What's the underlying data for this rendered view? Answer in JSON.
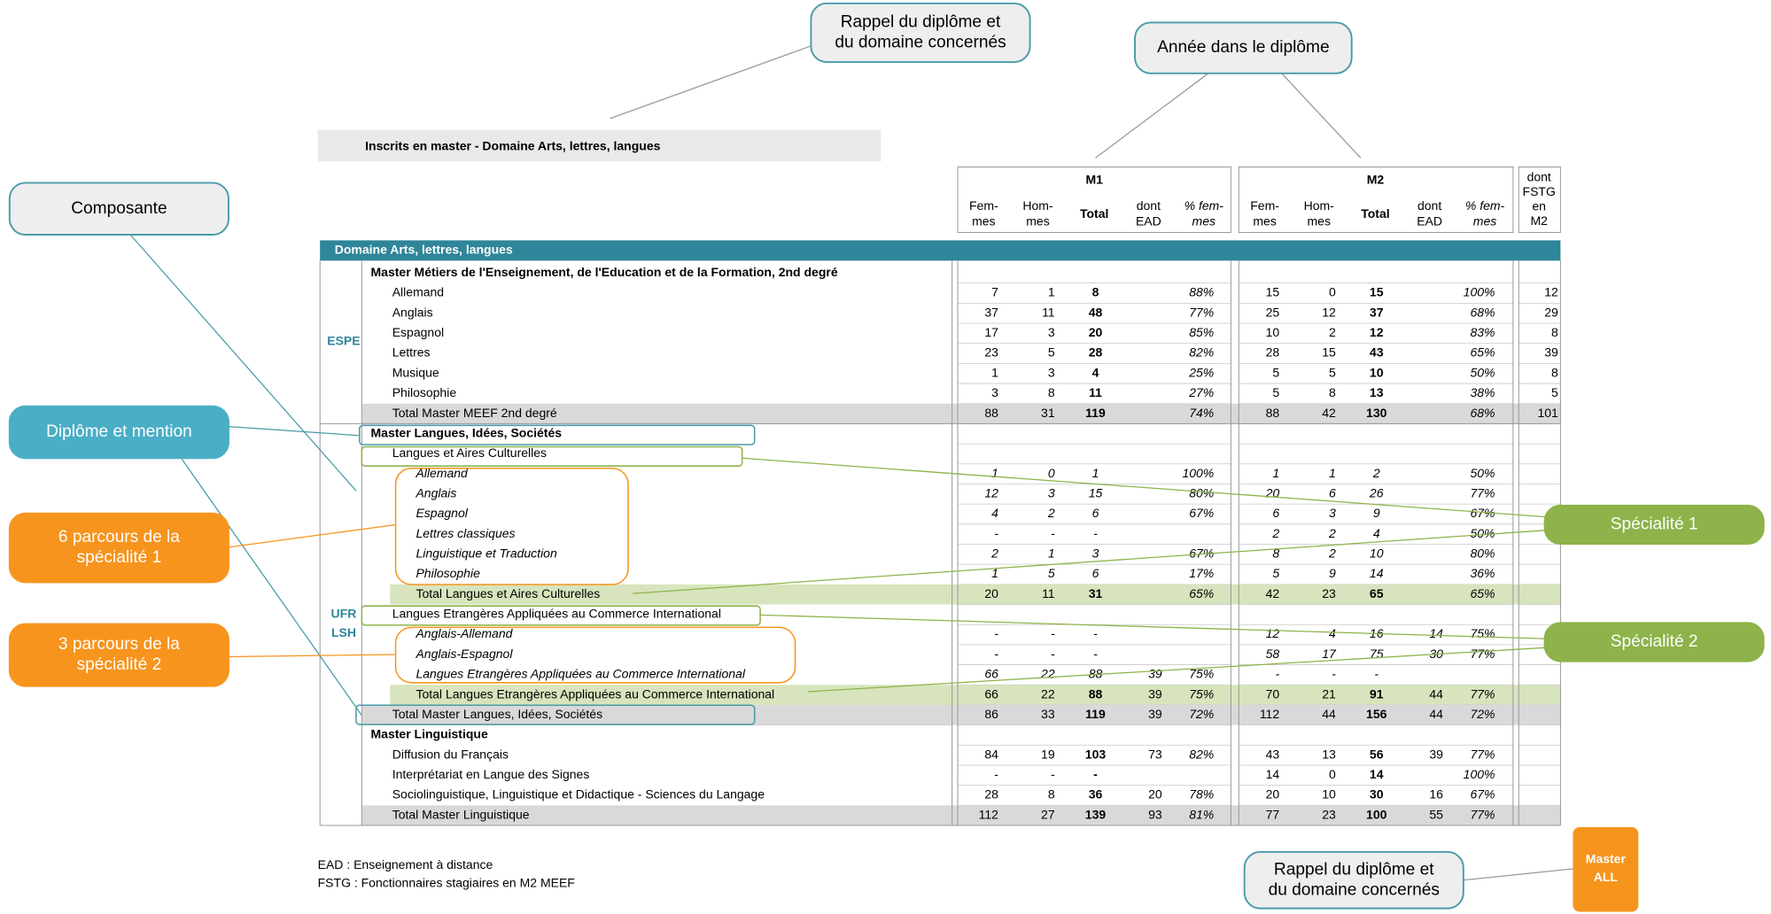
{
  "title": "Inscrits en master - Domaine Arts, lettres, langues",
  "groups": [
    "M1",
    "M2"
  ],
  "subcolumns": [
    [
      "Fem-",
      "mes"
    ],
    [
      "Hom-",
      "mes"
    ],
    [
      "Total"
    ],
    [
      "dont",
      "EAD"
    ],
    [
      "% fem-",
      "mes"
    ]
  ],
  "fstg": [
    "dont",
    "FSTG",
    "en",
    "M2"
  ],
  "domain": "Domaine Arts, lettres, langues",
  "composantes": [
    [
      "ESPE"
    ],
    [
      "UFR",
      "LSH"
    ]
  ],
  "rows": [
    {
      "kind": "head",
      "label": "Master Métiers de l'Enseignement, de l'Education et de la Formation, 2nd degré"
    },
    {
      "kind": "item",
      "label": "Allemand",
      "cells": [
        "7",
        "1",
        "8",
        null,
        "88%",
        "15",
        "0",
        "15",
        null,
        "100%",
        "12"
      ]
    },
    {
      "kind": "item",
      "label": "Anglais",
      "cells": [
        "37",
        "11",
        "48",
        null,
        "77%",
        "25",
        "12",
        "37",
        null,
        "68%",
        "29"
      ]
    },
    {
      "kind": "item",
      "label": "Espagnol",
      "cells": [
        "17",
        "3",
        "20",
        null,
        "85%",
        "10",
        "2",
        "12",
        null,
        "83%",
        "8"
      ]
    },
    {
      "kind": "item",
      "label": "Lettres",
      "cells": [
        "23",
        "5",
        "28",
        null,
        "82%",
        "28",
        "15",
        "43",
        null,
        "65%",
        "39"
      ]
    },
    {
      "kind": "item",
      "label": "Musique",
      "cells": [
        "1",
        "3",
        "4",
        null,
        "25%",
        "5",
        "5",
        "10",
        null,
        "50%",
        "8"
      ]
    },
    {
      "kind": "item",
      "label": "Philosophie",
      "cells": [
        "3",
        "8",
        "11",
        null,
        "27%",
        "5",
        "8",
        "13",
        null,
        "38%",
        "5"
      ]
    },
    {
      "kind": "total",
      "label": "Total Master MEEF 2nd degré",
      "cells": [
        "88",
        "31",
        "119",
        null,
        "74%",
        "88",
        "42",
        "130",
        null,
        "68%",
        "101"
      ]
    },
    {
      "kind": "head",
      "label": "Master Langues, Idées, Sociétés"
    },
    {
      "kind": "item",
      "label": "Langues et Aires Culturelles"
    },
    {
      "kind": "sub",
      "label": "Allemand",
      "cells": [
        "1",
        "0",
        "1",
        null,
        "100%",
        "1",
        "1",
        "2",
        null,
        "50%",
        null
      ]
    },
    {
      "kind": "sub",
      "label": "Anglais",
      "cells": [
        "12",
        "3",
        "15",
        null,
        "80%",
        "20",
        "6",
        "26",
        null,
        "77%",
        null
      ]
    },
    {
      "kind": "sub",
      "label": "Espagnol",
      "cells": [
        "4",
        "2",
        "6",
        null,
        "67%",
        "6",
        "3",
        "9",
        null,
        "67%",
        null
      ]
    },
    {
      "kind": "sub",
      "label": "Lettres classiques",
      "cells": [
        "-",
        "-",
        "-",
        null,
        null,
        "2",
        "2",
        "4",
        null,
        "50%",
        null
      ]
    },
    {
      "kind": "sub",
      "label": "Linguistique et Traduction",
      "cells": [
        "2",
        "1",
        "3",
        null,
        "67%",
        "8",
        "2",
        "10",
        null,
        "80%",
        null
      ]
    },
    {
      "kind": "sub",
      "label": "Philosophie",
      "cells": [
        "1",
        "5",
        "6",
        null,
        "17%",
        "5",
        "9",
        "14",
        null,
        "36%",
        null
      ]
    },
    {
      "kind": "subtotal",
      "label": "Total Langues et Aires Culturelles",
      "cells": [
        "20",
        "11",
        "31",
        null,
        "65%",
        "42",
        "23",
        "65",
        null,
        "65%",
        null
      ]
    },
    {
      "kind": "item",
      "label": "Langues Etrangères Appliquées au Commerce International"
    },
    {
      "kind": "sub",
      "label": "Anglais-Allemand",
      "cells": [
        "-",
        "-",
        "-",
        null,
        null,
        "12",
        "4",
        "16",
        "14",
        "75%",
        null
      ]
    },
    {
      "kind": "sub",
      "label": "Anglais-Espagnol",
      "cells": [
        "-",
        "-",
        "-",
        null,
        null,
        "58",
        "17",
        "75",
        "30",
        "77%",
        null
      ]
    },
    {
      "kind": "sub",
      "label": "Langues Etrangères Appliquées au Commerce International",
      "cells": [
        "66",
        "22",
        "88",
        "39",
        "75%",
        "-",
        "-",
        "-",
        null,
        null,
        null
      ]
    },
    {
      "kind": "subtotal",
      "label": "Total Langues Etrangères Appliquées au Commerce International",
      "cells": [
        "66",
        "22",
        "88",
        "39",
        "75%",
        "70",
        "21",
        "91",
        "44",
        "77%",
        null
      ]
    },
    {
      "kind": "total",
      "label": "Total Master Langues, Idées, Sociétés",
      "cells": [
        "86",
        "33",
        "119",
        "39",
        "72%",
        "112",
        "44",
        "156",
        "44",
        "72%",
        null
      ]
    },
    {
      "kind": "head",
      "label": "Master Linguistique"
    },
    {
      "kind": "item",
      "label": "Diffusion du Français",
      "cells": [
        "84",
        "19",
        "103",
        "73",
        "82%",
        "43",
        "13",
        "56",
        "39",
        "77%",
        null
      ]
    },
    {
      "kind": "item",
      "label": "Interprétariat en Langue des Signes",
      "cells": [
        "-",
        "-",
        "-",
        null,
        null,
        "14",
        "0",
        "14",
        null,
        "100%",
        null
      ]
    },
    {
      "kind": "item",
      "label": "Sociolinguistique, Linguistique et Didactique - Sciences du Langage",
      "cells": [
        "28",
        "8",
        "36",
        "20",
        "78%",
        "20",
        "10",
        "30",
        "16",
        "67%",
        null
      ]
    },
    {
      "kind": "total",
      "label": "Total Master Linguistique",
      "cells": [
        "112",
        "27",
        "139",
        "93",
        "81%",
        "77",
        "23",
        "100",
        "55",
        "77%",
        null
      ]
    }
  ],
  "footnotes": [
    "EAD : Enseignement à distance",
    "FSTG : Fonctionnaires stagiaires en M2 MEEF"
  ],
  "callouts": {
    "diploma_top": [
      "Rappel du diplôme et",
      "du domaine concernés"
    ],
    "year": [
      "Année dans le diplôme"
    ],
    "composante": [
      "Composante"
    ],
    "diplome_mention": [
      "Diplôme et mention"
    ],
    "parcours1": [
      "6 parcours de la",
      "spécialité 1"
    ],
    "parcours2": [
      "3 parcours de la",
      "spécialité 2"
    ],
    "specialite1": [
      "Spécialité 1"
    ],
    "specialite2": [
      "Spécialité 2"
    ],
    "master_all": [
      "Master",
      "ALL"
    ],
    "diploma_bottom": [
      "Rappel du diplôme et",
      "du domaine concernés"
    ]
  }
}
